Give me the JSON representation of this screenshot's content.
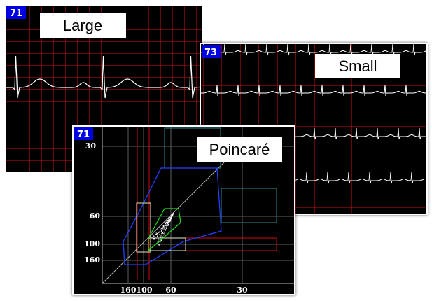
{
  "panels": [
    {
      "badge": "71",
      "label": "Large"
    },
    {
      "badge": "73",
      "label": "Small"
    },
    {
      "badge": "71",
      "label": "Poincaré",
      "y_ticks": [
        "30",
        "60",
        "100",
        "160"
      ],
      "x_ticks": [
        "160",
        "100",
        "60",
        "30"
      ]
    }
  ]
}
